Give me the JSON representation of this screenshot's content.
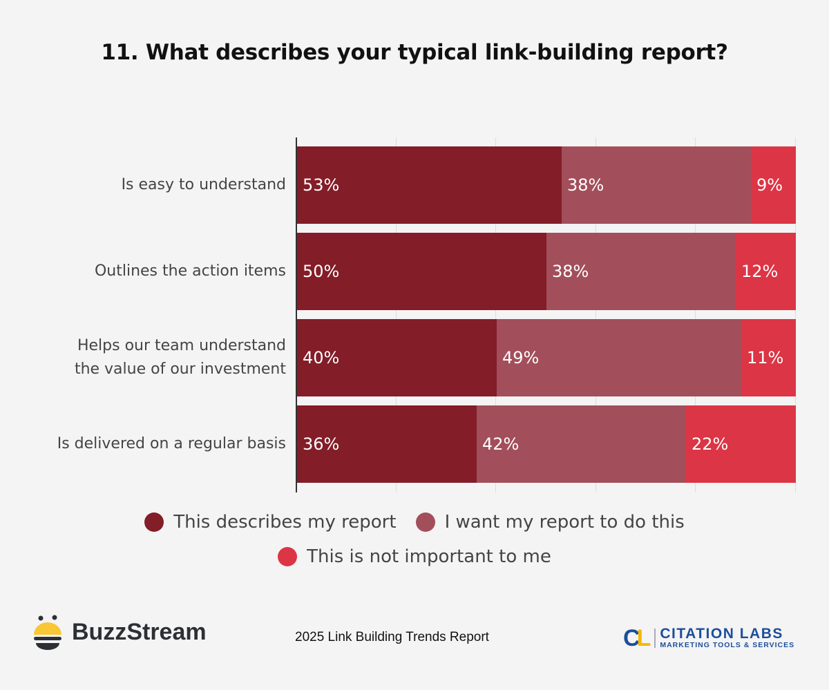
{
  "title": "11. What describes your typical link-building report?",
  "chart_data": {
    "type": "bar",
    "orientation": "horizontal",
    "stacked": true,
    "title": "11. What describes your typical link-building report?",
    "xlabel": "",
    "ylabel": "",
    "xlim": [
      0,
      100
    ],
    "grid": true,
    "gridlines_at": [
      0,
      20,
      40,
      60,
      80,
      100
    ],
    "tick_labels_shown": false,
    "legend_position": "bottom",
    "categories": [
      "Is easy to understand",
      "Outlines the action items",
      "Helps our team understand the value of our investment",
      "Is delivered on a regular basis"
    ],
    "series": [
      {
        "name": "This describes my report",
        "color": "#831d28",
        "values": [
          53,
          50,
          40,
          36
        ]
      },
      {
        "name": "I want my report to do this",
        "color": "#a24f5b",
        "values": [
          38,
          38,
          49,
          42
        ]
      },
      {
        "name": "This is not important to me",
        "color": "#dc3545",
        "values": [
          9,
          12,
          11,
          22
        ]
      }
    ]
  },
  "rows": [
    {
      "label_lines": [
        "Is easy to understand"
      ],
      "values": [
        "53%",
        "38%",
        "9%"
      ]
    },
    {
      "label_lines": [
        "Outlines the action items"
      ],
      "values": [
        "50%",
        "38%",
        "12%"
      ]
    },
    {
      "label_lines": [
        "Helps our team understand",
        "the value of our investment"
      ],
      "values": [
        "40%",
        "49%",
        "11%"
      ]
    },
    {
      "label_lines": [
        "Is delivered on a regular basis"
      ],
      "values": [
        "36%",
        "42%",
        "22%"
      ]
    }
  ],
  "legend": [
    {
      "label": "This describes my report",
      "color": "#831d28"
    },
    {
      "label": "I want my report to do this",
      "color": "#a24f5b"
    },
    {
      "label": "This is not important to me",
      "color": "#dc3545"
    }
  ],
  "footer": {
    "left_logo": "BuzzStream",
    "center_text": "2025 Link Building Trends Report",
    "right_logo_mark": "CL",
    "right_logo_name": "CITATION LABS",
    "right_logo_tagline": "MARKETING TOOLS & SERVICES"
  }
}
